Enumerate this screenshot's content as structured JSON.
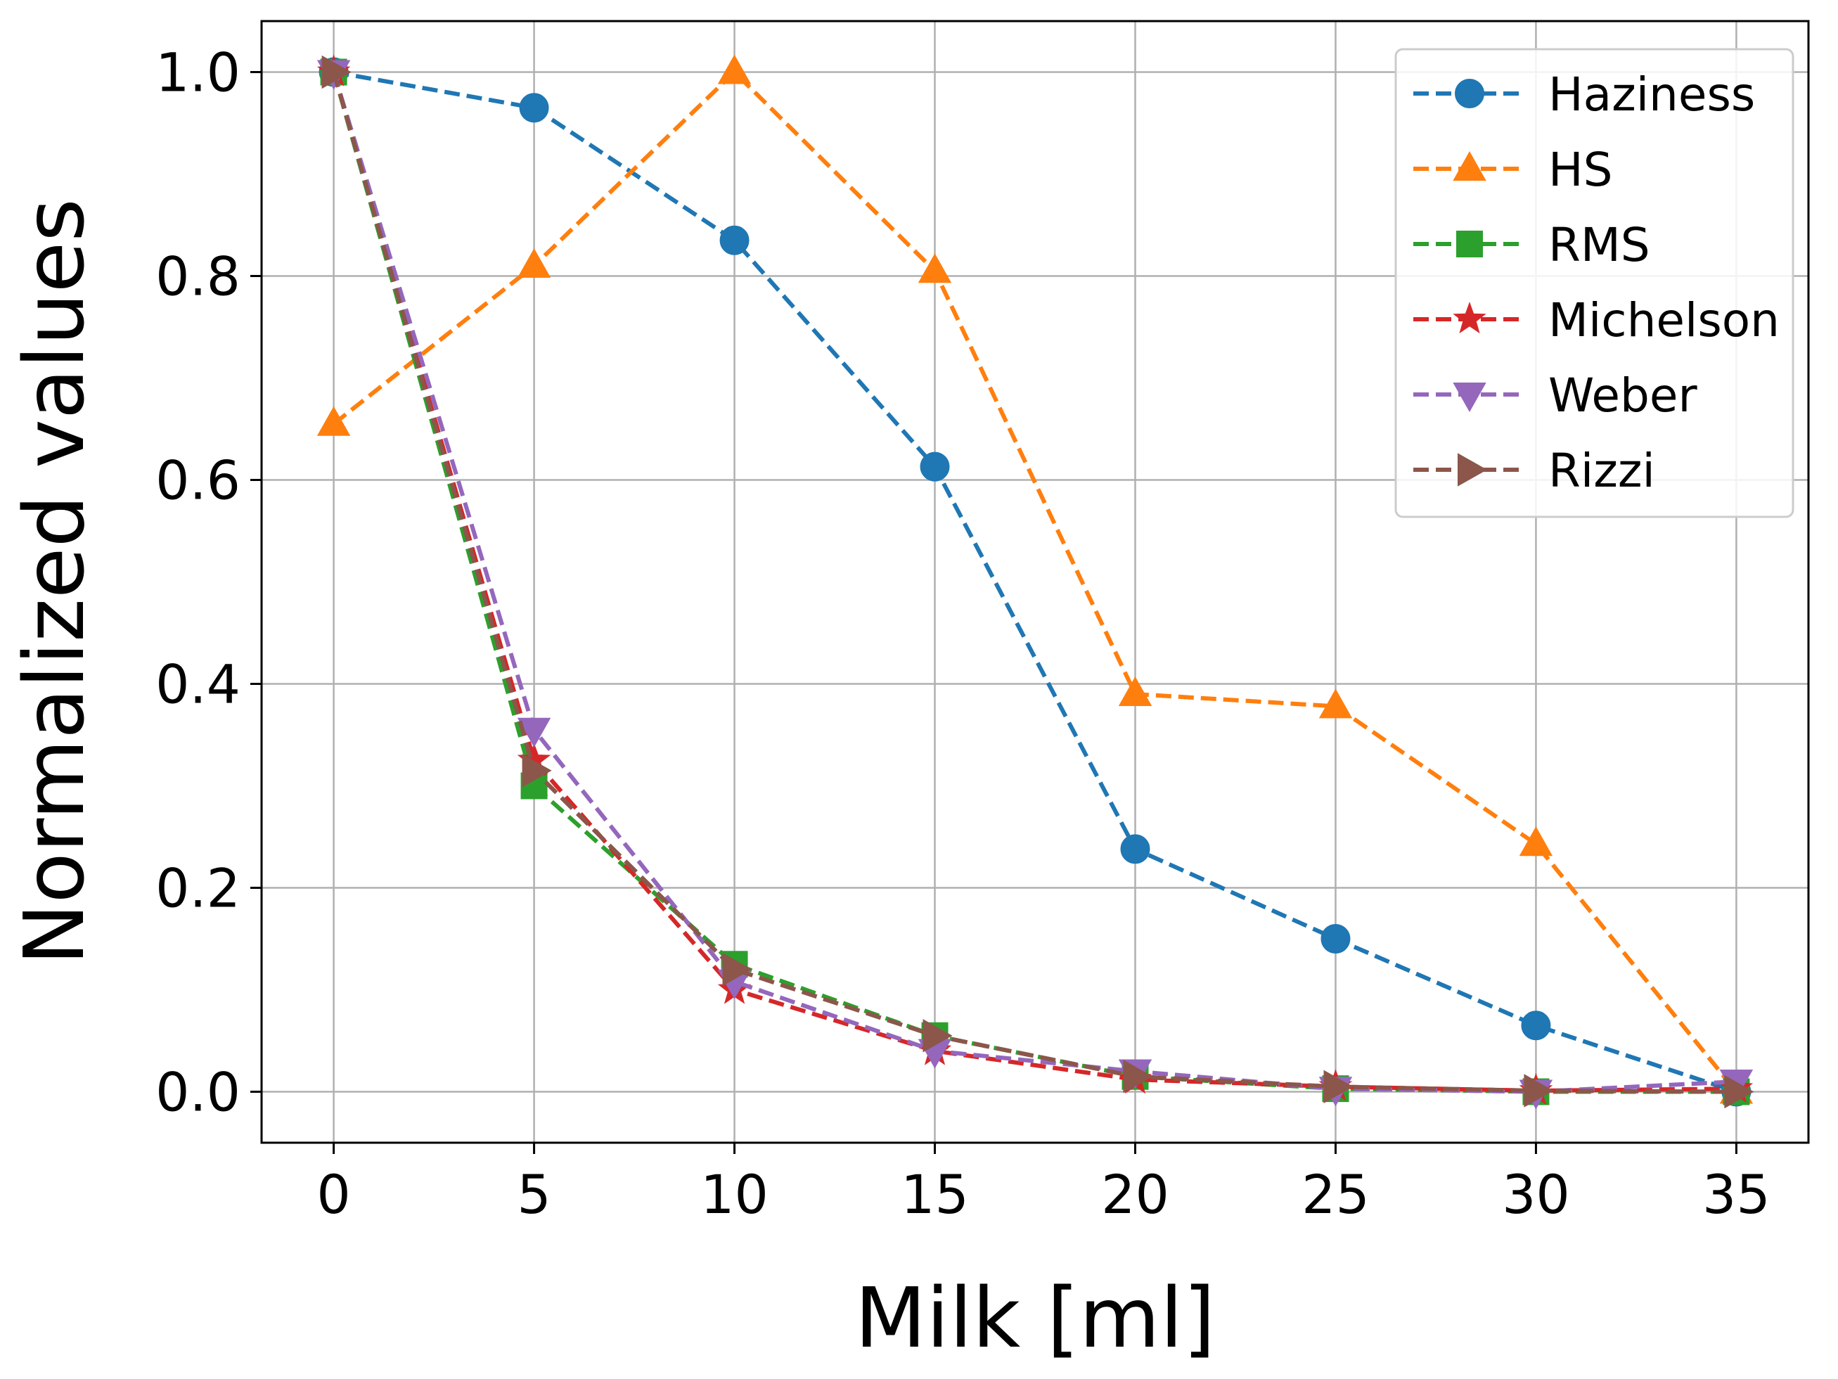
{
  "chart_data": {
    "type": "line",
    "title": "",
    "xlabel": "Milk [ml]",
    "ylabel": "Normalized values",
    "x": [
      0,
      5,
      10,
      15,
      20,
      25,
      30,
      35
    ],
    "xlim": [
      -1.8,
      36.8
    ],
    "ylim": [
      -0.05,
      1.05
    ],
    "xticks": [
      0,
      5,
      10,
      15,
      20,
      25,
      30,
      35
    ],
    "xtick_labels": [
      "0",
      "5",
      "10",
      "15",
      "20",
      "25",
      "30",
      "35"
    ],
    "yticks": [
      0.0,
      0.2,
      0.4,
      0.6,
      0.8,
      1.0
    ],
    "ytick_labels": [
      "0.0",
      "0.2",
      "0.4",
      "0.6",
      "0.8",
      "1.0"
    ],
    "grid": true,
    "legend_position": "top-right",
    "series": [
      {
        "name": "Haziness",
        "color": "#1f77b4",
        "marker": "circle",
        "values": [
          1.0,
          0.965,
          0.835,
          0.613,
          0.238,
          0.15,
          0.065,
          0.0
        ]
      },
      {
        "name": "HS",
        "color": "#ff7f0e",
        "marker": "triangle-up",
        "values": [
          0.655,
          0.81,
          1.0,
          0.805,
          0.39,
          0.378,
          0.243,
          0.0
        ]
      },
      {
        "name": "RMS",
        "color": "#2ca02c",
        "marker": "square",
        "values": [
          1.0,
          0.3,
          0.125,
          0.055,
          0.015,
          0.003,
          0.0,
          0.0
        ]
      },
      {
        "name": "Michelson",
        "color": "#d62728",
        "marker": "star",
        "values": [
          1.0,
          0.325,
          0.1,
          0.04,
          0.012,
          0.005,
          0.001,
          0.003
        ]
      },
      {
        "name": "Weber",
        "color": "#9467bd",
        "marker": "triangle-down",
        "values": [
          1.0,
          0.355,
          0.108,
          0.04,
          0.02,
          0.003,
          0.0,
          0.01
        ]
      },
      {
        "name": "Rizzi",
        "color": "#8c564b",
        "marker": "triangle-right",
        "values": [
          1.0,
          0.315,
          0.12,
          0.055,
          0.015,
          0.005,
          0.001,
          0.0
        ]
      }
    ]
  }
}
